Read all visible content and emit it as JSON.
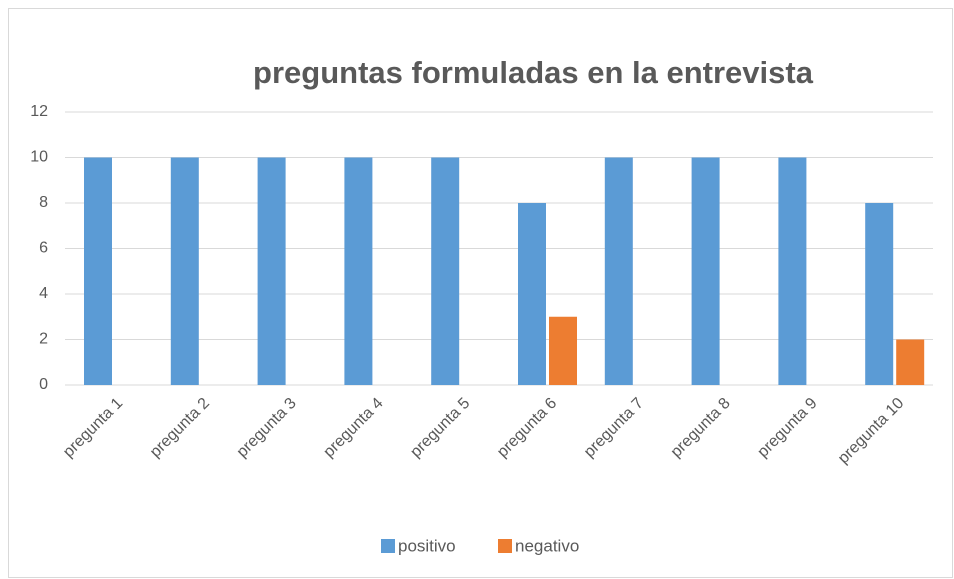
{
  "chart_data": {
    "type": "bar",
    "title": "preguntas formuladas en la entrevista",
    "categories": [
      "pregunta 1",
      "pregunta 2",
      "pregunta 3",
      "pregunta 4",
      "pregunta 5",
      "pregunta 6",
      "pregunta 7",
      "pregunta 8",
      "pregunta 9",
      "pregunta 10"
    ],
    "series": [
      {
        "name": "positivo",
        "color": "#5b9bd5",
        "values": [
          10,
          10,
          10,
          10,
          10,
          8,
          10,
          10,
          10,
          8
        ]
      },
      {
        "name": "negativo",
        "color": "#ed7d31",
        "values": [
          0,
          0,
          0,
          0,
          0,
          3,
          0,
          0,
          0,
          2
        ]
      }
    ],
    "ylim": [
      0,
      12
    ],
    "yticks": [
      0,
      2,
      4,
      6,
      8,
      10,
      12
    ],
    "grid": true,
    "legend": "bottom"
  }
}
